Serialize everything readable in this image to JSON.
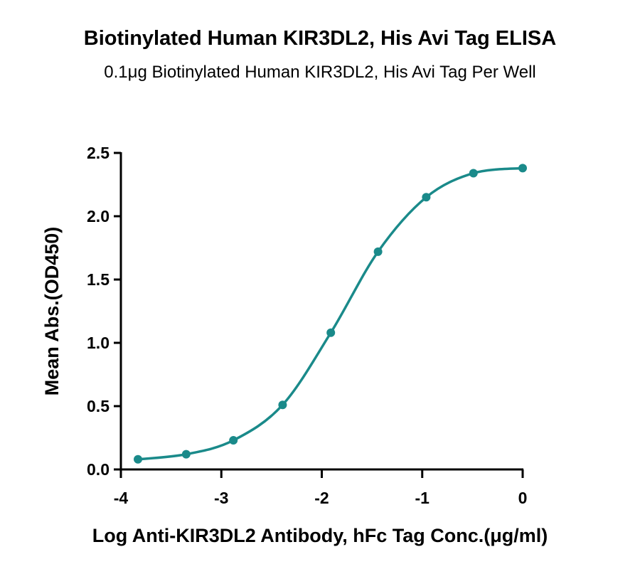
{
  "chart_data": {
    "type": "scatter",
    "title": "Biotinylated Human KIR3DL2, His Avi Tag ELISA",
    "subtitle": "0.1μg Biotinylated Human KIR3DL2, His Avi Tag Per Well",
    "xlabel": "Log Anti-KIR3DL2 Antibody, hFc Tag Conc.(μg/ml)",
    "ylabel": "Mean Abs.(OD450)",
    "xlim": [
      -4,
      0
    ],
    "ylim": [
      0,
      2.5
    ],
    "x_ticks": [
      "-4",
      "-3",
      "-2",
      "-1",
      "0"
    ],
    "y_ticks": [
      "0.0",
      "0.5",
      "1.0",
      "1.5",
      "2.0",
      "2.5"
    ],
    "grid": false,
    "series_color": "#1a8a8a",
    "fit": "sigmoidal curve",
    "points": [
      {
        "x": -3.83,
        "y": 0.08
      },
      {
        "x": -3.35,
        "y": 0.12
      },
      {
        "x": -2.88,
        "y": 0.23
      },
      {
        "x": -2.39,
        "y": 0.51
      },
      {
        "x": -1.91,
        "y": 1.08
      },
      {
        "x": -1.44,
        "y": 1.72
      },
      {
        "x": -0.96,
        "y": 2.15
      },
      {
        "x": -0.49,
        "y": 2.34
      },
      {
        "x": 0.0,
        "y": 2.38
      }
    ]
  }
}
